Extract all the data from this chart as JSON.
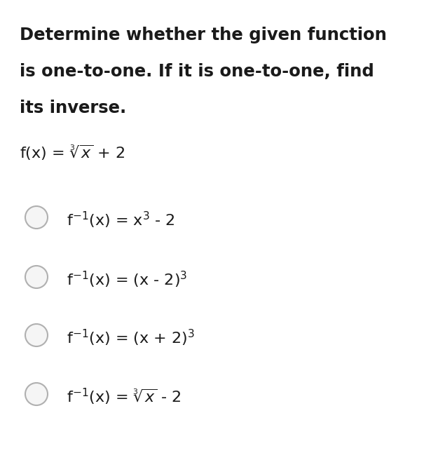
{
  "background_color": "#ffffff",
  "title_lines": [
    "Determine whether the given function",
    "is one-to-one. If it is one-to-one, find",
    "its inverse."
  ],
  "title_fontsize": 17.5,
  "title_fontweight": "bold",
  "question_fontsize": 16,
  "option_fontsize": 16,
  "text_color": "#1a1a1a",
  "circle_edge_color": "#b0b0b0",
  "circle_face_color": "#f5f5f5",
  "fig_width": 6.15,
  "fig_height": 6.56,
  "dpi": 100
}
